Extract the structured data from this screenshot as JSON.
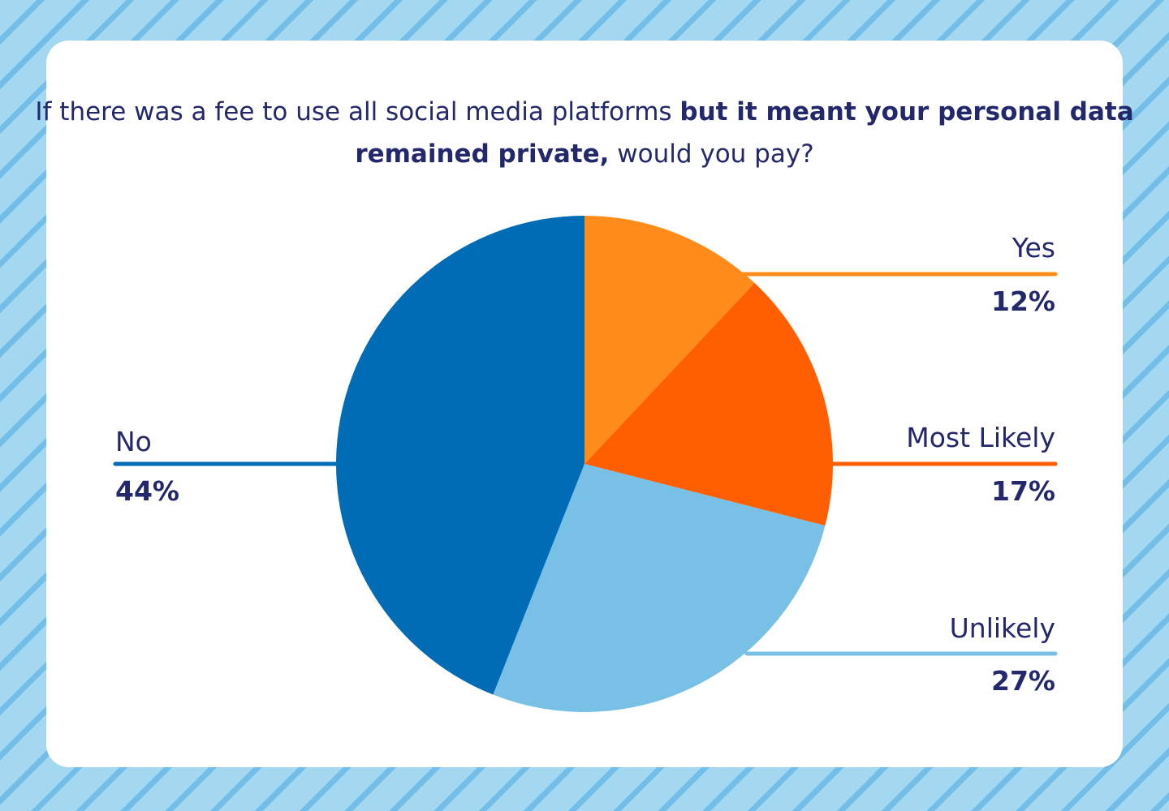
{
  "chart_data": {
    "type": "pie",
    "title_parts": [
      {
        "text": "If there was a fee to use all social media platforms ",
        "bold": false
      },
      {
        "text": "but it meant your personal data remained private,",
        "bold": true
      },
      {
        "text": " would you pay?",
        "bold": false
      }
    ],
    "slices": [
      {
        "label": "Yes",
        "value": 12,
        "display": "12%",
        "color": "#ff8c1a"
      },
      {
        "label": "Most Likely",
        "value": 17,
        "display": "17%",
        "color": "#ff5f00"
      },
      {
        "label": "Unlikely",
        "value": 27,
        "display": "27%",
        "color": "#78c0e6"
      },
      {
        "label": "No",
        "value": 44,
        "display": "44%",
        "color": "#006cb5"
      }
    ],
    "start_angle": "12 o'clock",
    "direction": "clockwise",
    "text_color": "#23276b"
  }
}
